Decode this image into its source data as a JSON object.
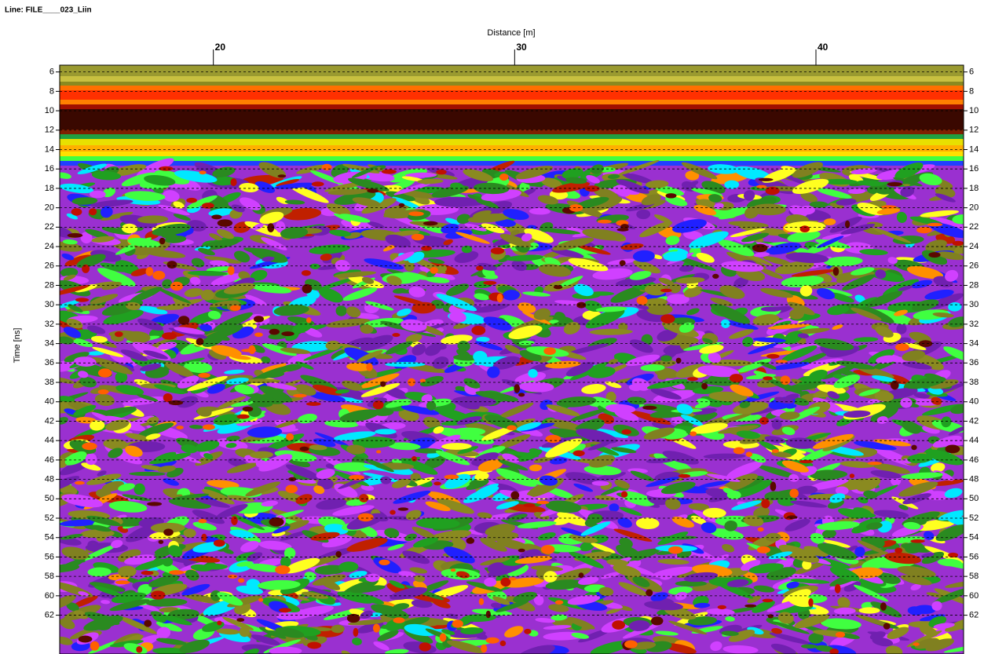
{
  "chart_data": {
    "type": "radargram",
    "title": "Line: FILE____023_Liin",
    "x_label": "Distance [m]",
    "y_label": "Time [ns]",
    "xlim": [
      14.9,
      44.9
    ],
    "xticks": [
      20,
      30,
      40
    ],
    "ylim": [
      5.3,
      66
    ],
    "yticks": [
      6,
      8,
      10,
      12,
      14,
      16,
      18,
      20,
      22,
      24,
      26,
      28,
      30,
      32,
      34,
      36,
      38,
      40,
      42,
      44,
      46,
      48,
      50,
      52,
      54,
      56,
      58,
      60,
      62
    ],
    "y_inverted": true,
    "grid": true
  }
}
